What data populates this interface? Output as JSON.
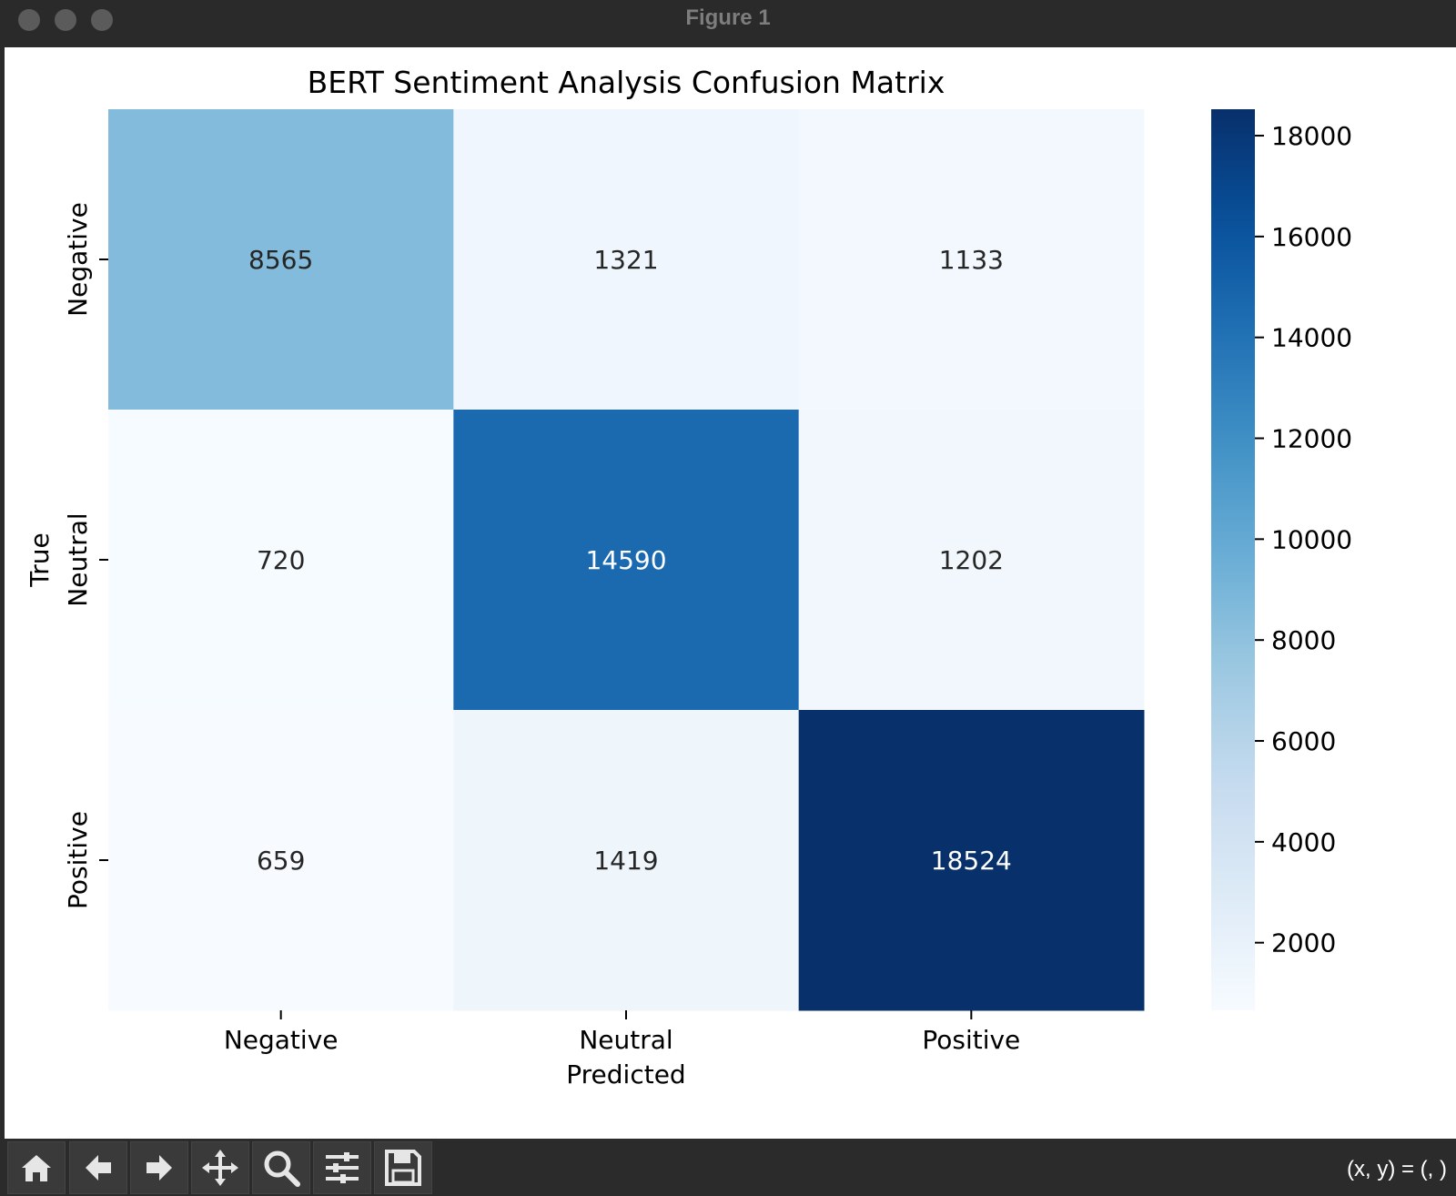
{
  "window": {
    "title": "Figure 1"
  },
  "toolbar": {
    "buttons": [
      {
        "name": "home-button",
        "icon": "home-icon"
      },
      {
        "name": "back-button",
        "icon": "arrow-left-icon"
      },
      {
        "name": "forward-button",
        "icon": "arrow-right-icon"
      },
      {
        "name": "pan-button",
        "icon": "move-icon"
      },
      {
        "name": "zoom-button",
        "icon": "search-icon"
      },
      {
        "name": "configure-subplots-button",
        "icon": "sliders-icon"
      },
      {
        "name": "save-button",
        "icon": "save-icon"
      }
    ],
    "coordinates": "(x, y) = (, )"
  },
  "chart_data": {
    "type": "heatmap",
    "title": "BERT Sentiment Analysis Confusion Matrix",
    "xlabel": "Predicted",
    "ylabel": "True",
    "x_categories": [
      "Negative",
      "Neutral",
      "Positive"
    ],
    "y_categories": [
      "Negative",
      "Neutral",
      "Positive"
    ],
    "values": [
      [
        8565,
        1321,
        1133
      ],
      [
        720,
        14590,
        1202
      ],
      [
        659,
        1419,
        18524
      ]
    ],
    "colormap": "Blues",
    "colorbar": {
      "range": [
        659,
        18524
      ],
      "ticks": [
        2000,
        4000,
        6000,
        8000,
        10000,
        12000,
        14000,
        16000,
        18000
      ]
    }
  }
}
